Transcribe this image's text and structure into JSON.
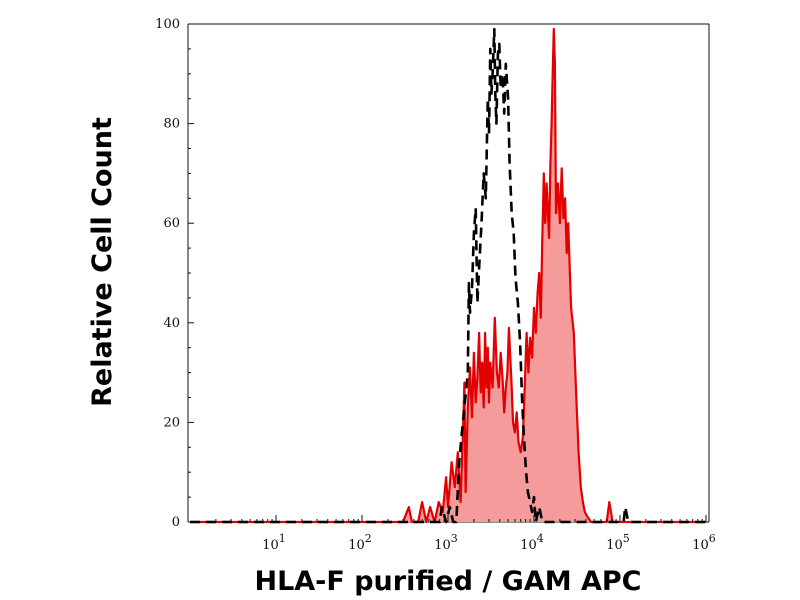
{
  "chart_data": {
    "type": "area",
    "title": "",
    "xlabel": "HLA-F purified / GAM APC",
    "ylabel": "Relative Cell Count",
    "x_scale": "log10",
    "xlim": [
      1,
      1000000
    ],
    "ylim": [
      0,
      100
    ],
    "x_ticks": [
      {
        "value": 10,
        "base": "10",
        "exp": "1"
      },
      {
        "value": 100,
        "base": "10",
        "exp": "2"
      },
      {
        "value": 1000,
        "base": "10",
        "exp": "3"
      },
      {
        "value": 10000,
        "base": "10",
        "exp": "4"
      },
      {
        "value": 100000,
        "base": "10",
        "exp": "5"
      },
      {
        "value": 1000000,
        "base": "10",
        "exp": "6"
      }
    ],
    "y_ticks": [
      {
        "value": 0,
        "label": "0"
      },
      {
        "value": 20,
        "label": "20"
      },
      {
        "value": 40,
        "label": "40"
      },
      {
        "value": 60,
        "label": "60"
      },
      {
        "value": 80,
        "label": "80"
      },
      {
        "value": 100,
        "label": "100"
      }
    ],
    "grid": false,
    "legend": "none",
    "series": [
      {
        "style": "filled-solid",
        "line_color": "#e30000",
        "fill_color": "#f59b9b",
        "points": [
          [
            1,
            0
          ],
          [
            10,
            0
          ],
          [
            100,
            0
          ],
          [
            300,
            0
          ],
          [
            350,
            3
          ],
          [
            380,
            0
          ],
          [
            450,
            0
          ],
          [
            500,
            4
          ],
          [
            560,
            0
          ],
          [
            620,
            3
          ],
          [
            700,
            0
          ],
          [
            780,
            4
          ],
          [
            870,
            2
          ],
          [
            950,
            9
          ],
          [
            1000,
            3
          ],
          [
            1100,
            12
          ],
          [
            1200,
            7
          ],
          [
            1300,
            14
          ],
          [
            1400,
            4
          ],
          [
            1500,
            19
          ],
          [
            1550,
            28
          ],
          [
            1600,
            6
          ],
          [
            1700,
            23
          ],
          [
            1800,
            31
          ],
          [
            1900,
            21
          ],
          [
            2000,
            34
          ],
          [
            2100,
            24
          ],
          [
            2200,
            29
          ],
          [
            2300,
            38
          ],
          [
            2400,
            26
          ],
          [
            2500,
            32
          ],
          [
            2600,
            23
          ],
          [
            2700,
            38
          ],
          [
            2800,
            27
          ],
          [
            2900,
            35
          ],
          [
            3000,
            24
          ],
          [
            3100,
            32
          ],
          [
            3300,
            27
          ],
          [
            3500,
            41
          ],
          [
            3700,
            30
          ],
          [
            3900,
            27
          ],
          [
            4100,
            34
          ],
          [
            4300,
            29
          ],
          [
            4500,
            22
          ],
          [
            4700,
            27
          ],
          [
            4900,
            30
          ],
          [
            5100,
            39
          ],
          [
            5300,
            33
          ],
          [
            5500,
            27
          ],
          [
            5700,
            20
          ],
          [
            6000,
            18
          ],
          [
            6300,
            22
          ],
          [
            6600,
            16
          ],
          [
            7000,
            14
          ],
          [
            7400,
            17
          ],
          [
            7800,
            27
          ],
          [
            8200,
            38
          ],
          [
            8600,
            30
          ],
          [
            9000,
            37
          ],
          [
            9500,
            33
          ],
          [
            10000,
            43
          ],
          [
            10500,
            38
          ],
          [
            11000,
            46
          ],
          [
            11500,
            50
          ],
          [
            12000,
            41
          ],
          [
            12500,
            57
          ],
          [
            13000,
            70
          ],
          [
            13500,
            60
          ],
          [
            14000,
            68
          ],
          [
            14500,
            62
          ],
          [
            15000,
            57
          ],
          [
            15500,
            72
          ],
          [
            16000,
            80
          ],
          [
            16500,
            90
          ],
          [
            17000,
            99
          ],
          [
            17500,
            92
          ],
          [
            18000,
            62
          ],
          [
            19000,
            68
          ],
          [
            20000,
            60
          ],
          [
            21000,
            71
          ],
          [
            22000,
            61
          ],
          [
            23000,
            65
          ],
          [
            24000,
            54
          ],
          [
            25000,
            60
          ],
          [
            27000,
            43
          ],
          [
            29000,
            38
          ],
          [
            31000,
            25
          ],
          [
            33000,
            14
          ],
          [
            35000,
            7
          ],
          [
            37000,
            4
          ],
          [
            39000,
            2
          ],
          [
            42000,
            1
          ],
          [
            46000,
            0
          ],
          [
            70000,
            0
          ],
          [
            75000,
            4
          ],
          [
            82000,
            0
          ],
          [
            100000,
            0
          ],
          [
            1000000,
            0
          ]
        ]
      },
      {
        "style": "dashed",
        "line_color": "#000000",
        "points": [
          [
            1,
            0
          ],
          [
            600,
            0
          ],
          [
            800,
            0
          ],
          [
            850,
            3
          ],
          [
            950,
            0
          ],
          [
            1050,
            3
          ],
          [
            1150,
            0
          ],
          [
            1250,
            0
          ],
          [
            1350,
            12
          ],
          [
            1450,
            18
          ],
          [
            1550,
            23
          ],
          [
            1700,
            30
          ],
          [
            1750,
            48
          ],
          [
            1800,
            42
          ],
          [
            1900,
            47
          ],
          [
            2000,
            58
          ],
          [
            2100,
            63
          ],
          [
            2200,
            44
          ],
          [
            2300,
            51
          ],
          [
            2450,
            60
          ],
          [
            2600,
            70
          ],
          [
            2750,
            65
          ],
          [
            2900,
            85
          ],
          [
            3000,
            78
          ],
          [
            3100,
            95
          ],
          [
            3200,
            86
          ],
          [
            3300,
            90
          ],
          [
            3450,
            99
          ],
          [
            3550,
            86
          ],
          [
            3650,
            80
          ],
          [
            3800,
            94
          ],
          [
            3950,
            96
          ],
          [
            4100,
            87
          ],
          [
            4300,
            90
          ],
          [
            4500,
            82
          ],
          [
            4700,
            92
          ],
          [
            5000,
            85
          ],
          [
            5200,
            72
          ],
          [
            5500,
            62
          ],
          [
            5800,
            58
          ],
          [
            6100,
            49
          ],
          [
            6500,
            44
          ],
          [
            6900,
            36
          ],
          [
            7300,
            24
          ],
          [
            7700,
            16
          ],
          [
            8100,
            10
          ],
          [
            8500,
            6
          ],
          [
            9000,
            4
          ],
          [
            9500,
            2
          ],
          [
            10000,
            5
          ],
          [
            10500,
            0
          ],
          [
            11500,
            3
          ],
          [
            12500,
            0
          ],
          [
            14000,
            0
          ],
          [
            100000,
            0
          ],
          [
            110000,
            0
          ],
          [
            115000,
            3
          ],
          [
            125000,
            0
          ],
          [
            1000000,
            0
          ]
        ]
      }
    ]
  }
}
